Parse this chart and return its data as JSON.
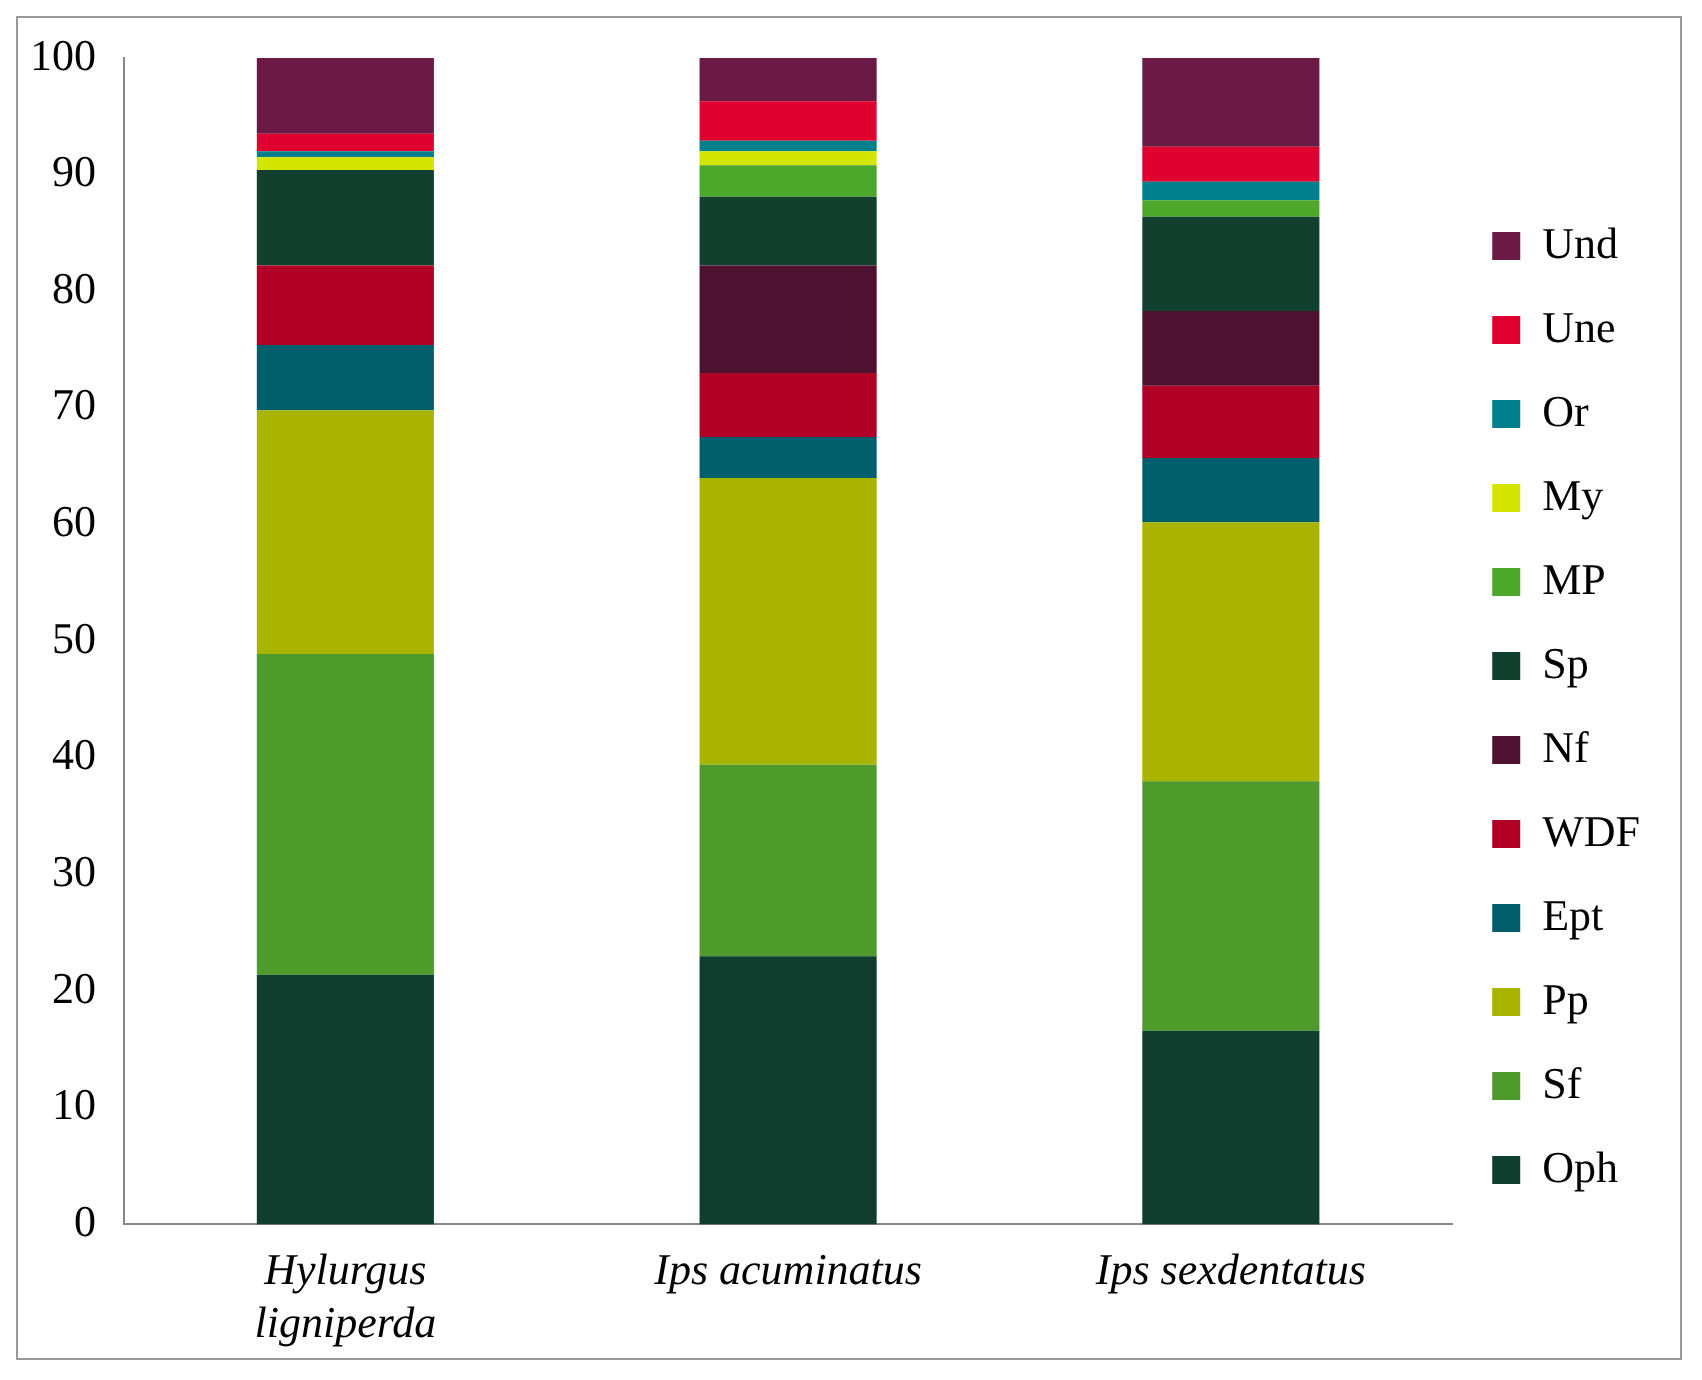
{
  "chart_data": {
    "type": "bar",
    "stacked": true,
    "categories": [
      "Hylurgus ligniperda",
      "Ips acuminatus",
      "Ips sexdentatus"
    ],
    "ylim": [
      0,
      100
    ],
    "yticks": [
      0,
      10,
      20,
      30,
      40,
      50,
      60,
      70,
      80,
      90,
      100
    ],
    "grid": false,
    "legend": "right",
    "series": [
      {
        "name": "Oph",
        "color": "#0f3d2e",
        "values": [
          21.4,
          23.0,
          16.6
        ]
      },
      {
        "name": "Sf",
        "color": "#4e9a2a",
        "values": [
          27.5,
          16.4,
          21.4
        ]
      },
      {
        "name": "Pp",
        "color": "#a8b400",
        "values": [
          20.9,
          24.6,
          22.2
        ]
      },
      {
        "name": "Ept",
        "color": "#005f6b",
        "values": [
          5.6,
          3.5,
          5.5
        ]
      },
      {
        "name": "WDF",
        "color": "#b00025",
        "values": [
          6.8,
          5.5,
          6.2
        ]
      },
      {
        "name": "Nf",
        "color": "#4e1130",
        "values": [
          0,
          9.2,
          6.4
        ]
      },
      {
        "name": "Sp",
        "color": "#12402f",
        "values": [
          8.2,
          5.9,
          8.1
        ]
      },
      {
        "name": "MP",
        "color": "#4ca82a",
        "values": [
          0,
          2.7,
          1.4
        ]
      },
      {
        "name": "My",
        "color": "#d4e600",
        "values": [
          1.1,
          1.2,
          0
        ]
      },
      {
        "name": "Or",
        "color": "#00808c",
        "values": [
          0.5,
          0.9,
          1.6
        ]
      },
      {
        "name": "Une",
        "color": "#e0002f",
        "values": [
          1.5,
          3.4,
          3.0
        ]
      },
      {
        "name": "Und",
        "color": "#6b1a45",
        "values": [
          6.5,
          3.7,
          7.6
        ]
      }
    ]
  }
}
